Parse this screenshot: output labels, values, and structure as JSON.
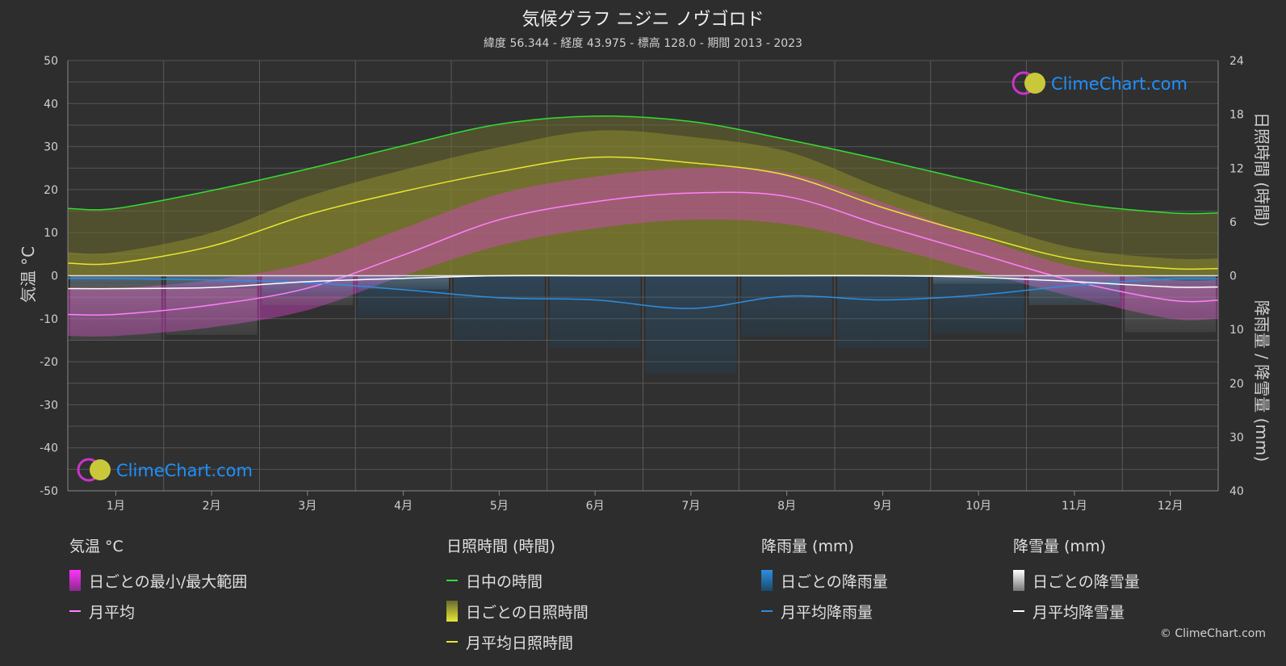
{
  "header": {
    "title": "気候グラフ ニジニ ノヴゴロド",
    "subtitle": "緯度 56.344 - 経度 43.975 - 標高 128.0 - 期間 2013 - 2023"
  },
  "chart_data": {
    "type": "line",
    "x_months": [
      "1月",
      "2月",
      "3月",
      "4月",
      "5月",
      "6月",
      "7月",
      "8月",
      "9月",
      "10月",
      "11月",
      "12月"
    ],
    "y_left": {
      "label": "気温 °C",
      "ticks": [
        "50",
        "40",
        "30",
        "20",
        "10",
        "0",
        "-10",
        "-20",
        "-30",
        "-40",
        "-50"
      ],
      "range": [
        -50,
        50
      ]
    },
    "y_right_top": {
      "label": "日照時間 (時間)",
      "ticks": [
        "24",
        "18",
        "12",
        "6",
        "0"
      ],
      "range": [
        0,
        24
      ]
    },
    "y_right_bottom": {
      "label": "降雨量 / 降雪量 (mm)",
      "ticks": [
        "10",
        "20",
        "30",
        "40"
      ],
      "range": [
        0,
        40
      ]
    },
    "grid": true,
    "series": [
      {
        "name": "日中の時間",
        "color": "#33dd33",
        "axis": "sunshine",
        "values": [
          7.5,
          9.5,
          11.9,
          14.5,
          16.9,
          17.8,
          17.2,
          15.2,
          12.9,
          10.4,
          8.1,
          7.0
        ]
      },
      {
        "name": "月平均日照時間",
        "color": "#e6e633",
        "axis": "sunshine",
        "values": [
          1.4,
          3.3,
          6.8,
          9.4,
          11.6,
          13.2,
          12.6,
          11.2,
          7.6,
          4.5,
          1.8,
          0.8
        ]
      },
      {
        "name": "月平均",
        "color": "#ff80ff",
        "axis": "temperature",
        "values": [
          -9.0,
          -6.8,
          -2.9,
          4.8,
          13.0,
          17.2,
          19.2,
          18.4,
          11.6,
          5.1,
          -1.3,
          -5.7
        ]
      },
      {
        "name": "月平均降雨量",
        "color": "#2d8ee0",
        "axis": "precipitation",
        "values": [
          0.5,
          0.8,
          1.3,
          2.6,
          4.1,
          4.5,
          6.1,
          3.8,
          4.5,
          3.6,
          1.8,
          0.6
        ]
      },
      {
        "name": "月平均降雪量",
        "color": "#ffffff",
        "axis": "precipitation",
        "values": [
          2.4,
          2.2,
          1.1,
          0.5,
          0.0,
          0.0,
          0.0,
          0.0,
          0.0,
          0.3,
          1.1,
          2.1
        ]
      }
    ],
    "temperature_band_approx": {
      "min": [
        -14,
        -12,
        -8,
        0,
        7,
        11,
        13,
        12,
        7,
        1,
        -5,
        -10
      ],
      "max": [
        -3,
        -1,
        3,
        11,
        19,
        23,
        25,
        24,
        17,
        9,
        2,
        -1
      ]
    }
  },
  "legend": {
    "temperature": {
      "header": "気温 °C",
      "range": "日ごとの最小/最大範囲",
      "avg": "月平均"
    },
    "sunshine": {
      "header": "日照時間 (時間)",
      "daylight": "日中の時間",
      "daily": "日ごとの日照時間",
      "avg": "月平均日照時間"
    },
    "rain": {
      "header": "降雨量 (mm)",
      "daily": "日ごとの降雨量",
      "avg": "月平均降雨量"
    },
    "snow": {
      "header": "降雪量 (mm)",
      "daily": "日ごとの降雪量",
      "avg": "月平均降雪量"
    }
  },
  "brand": {
    "name": "ClimeChart.com",
    "copyright": "© ClimeChart.com"
  },
  "colors": {
    "background": "#2d2d2d",
    "daylight": "#33dd33",
    "sunshine": "#e6e633",
    "temperature": "#ff80ff",
    "rain": "#2d8ee0",
    "snow": "#ffffff",
    "brand": "#1e90ff"
  }
}
